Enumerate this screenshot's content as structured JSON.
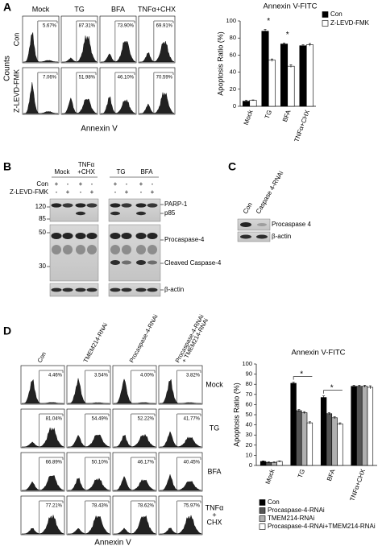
{
  "panel_labels": [
    "A",
    "B",
    "C",
    "D"
  ],
  "flow_a": {
    "columns": [
      [
        "Mock"
      ],
      [
        "TG"
      ],
      [
        "BFA"
      ],
      [
        "TNFα+CHX"
      ]
    ],
    "rows": [
      "Con",
      "Z-LEVD-FMK"
    ],
    "percents": [
      [
        "5.67%",
        "87.31%",
        "73.90%",
        "69.91%"
      ],
      [
        "7.06%",
        "51.98%",
        "46.10%",
        "70.59%"
      ]
    ],
    "y_label": "Counts",
    "x_label": "Annexin V"
  },
  "chart_data": [
    {
      "type": "bar",
      "title": "Annexin V-FITC",
      "y_label": "Apoptosis Ratio (%)",
      "categories": [
        "Mock",
        "TG",
        "BFA",
        "TNFα+CHX"
      ],
      "series": [
        {
          "name": "Con",
          "color": "#000000",
          "values": [
            6,
            88,
            73,
            71
          ],
          "errors": [
            1,
            2,
            1,
            1
          ]
        },
        {
          "name": "Z-LEVD-FMK",
          "color": "#ffffff",
          "values": [
            7,
            54,
            47,
            72
          ],
          "errors": [
            0.5,
            1.5,
            1.5,
            1.5
          ]
        }
      ],
      "annotations": [
        null,
        "*",
        "*",
        null
      ],
      "ylim": [
        0,
        100
      ],
      "yticks": [
        0,
        20,
        40,
        60,
        80,
        100
      ],
      "legend": "upper right"
    },
    {
      "type": "bar",
      "title": "Annexin V-FITC",
      "y_label": "Apoptosis Ratio (%)",
      "categories": [
        "Mock",
        "TG",
        "BFA",
        "TNFα+CHX"
      ],
      "series": [
        {
          "name": "Con",
          "color": "#000000",
          "values": [
            4,
            81,
            67,
            78
          ],
          "errors": [
            0.5,
            1,
            1.5,
            1
          ]
        },
        {
          "name": "Procaspase-4-RNAi",
          "color": "#555555",
          "values": [
            3,
            54,
            51,
            78
          ],
          "errors": [
            0.5,
            1,
            1,
            1
          ]
        },
        {
          "name": "TMEM214-RNAi",
          "color": "#b0b0b0",
          "values": [
            3,
            52,
            47,
            78
          ],
          "errors": [
            0.5,
            1,
            1,
            1
          ]
        },
        {
          "name": "Procaspase-4-RNAi+TMEM214-RNAi",
          "color": "#ffffff",
          "values": [
            4,
            42,
            41,
            77
          ],
          "errors": [
            0.5,
            1,
            1,
            1.5
          ]
        }
      ],
      "annotations": [
        null,
        "*",
        "*",
        null
      ],
      "ylim": [
        0,
        100
      ],
      "yticks": [
        0,
        10,
        20,
        30,
        40,
        50,
        60,
        70,
        80,
        90,
        100
      ],
      "legend": "below"
    }
  ],
  "blot_b": {
    "treatments": [
      [
        "Mock"
      ],
      [
        "TNFα",
        "+CHX"
      ],
      [
        "TG"
      ],
      [
        "BFA"
      ]
    ],
    "row_labels": [
      "Con",
      "Z-LEVD-FMK"
    ],
    "con_signs": [
      "+",
      "-",
      "+",
      "-",
      "+",
      "-",
      "+",
      "-"
    ],
    "zlevd_signs": [
      "-",
      "+",
      "-",
      "+",
      "-",
      "+",
      "-",
      "+"
    ],
    "markers": [
      "120",
      "85",
      "50",
      "30"
    ],
    "bands": [
      "PARP-1",
      "p85",
      "Procaspase-4",
      "Cleaved Caspase-4",
      "β-actin"
    ]
  },
  "blot_c": {
    "lanes": [
      "Con",
      "Caspase 4-RNAi"
    ],
    "bands": [
      "Procaspase 4",
      "β-actin"
    ]
  },
  "flow_d": {
    "columns": [
      [
        "Con"
      ],
      [
        "TMEM214-RNAi"
      ],
      [
        "Procaspase-4-RNAi"
      ],
      [
        "Procaspase-4-RNAi",
        "+ TMEM214-RNAi"
      ]
    ],
    "rows": [
      [
        "Mock"
      ],
      [
        "TG"
      ],
      [
        "BFA"
      ],
      [
        "TNFα",
        "+",
        "CHX"
      ]
    ],
    "percents": [
      [
        "4.46%",
        "3.54%",
        "4.00%",
        "3.82%"
      ],
      [
        "81.04%",
        "54.49%",
        "52.22%",
        "41.77%"
      ],
      [
        "66.89%",
        "50.10%",
        "46.17%",
        "40.45%"
      ],
      [
        "77.21%",
        "78.43%",
        "78.62%",
        "75.97%"
      ]
    ],
    "x_label": "Annexin V"
  }
}
